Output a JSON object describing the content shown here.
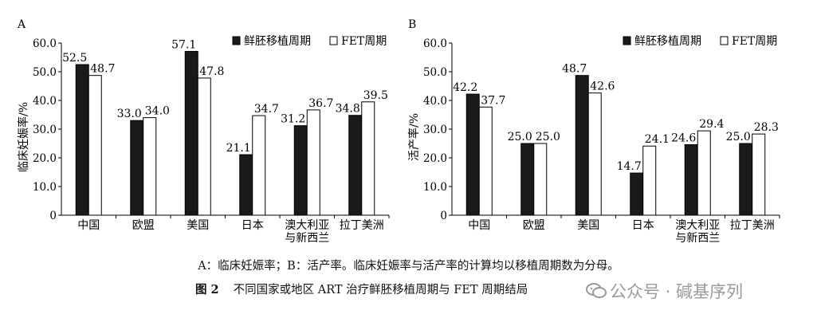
{
  "chart_data": [
    {
      "type": "bar",
      "panel_label": "A",
      "ylabel": "临床妊娠率/%",
      "ylim": [
        0,
        60
      ],
      "yticks": [
        "0",
        "10.0",
        "20.0",
        "30.0",
        "40.0",
        "50.0",
        "60.0"
      ],
      "categories": [
        [
          "中国"
        ],
        [
          "欧盟"
        ],
        [
          "美国"
        ],
        [
          "日本"
        ],
        [
          "澳大利亚",
          "与新西兰"
        ],
        [
          "拉丁美洲"
        ]
      ],
      "series": [
        {
          "name": "鲜胚移植周期",
          "color": "#1a1a1a",
          "values": [
            52.5,
            33.0,
            57.1,
            21.1,
            31.2,
            34.8
          ],
          "labels": [
            "52.5",
            "33.0",
            "57.1",
            "21.1",
            "31.2",
            "34.8"
          ]
        },
        {
          "name": "FET周期",
          "color": "#ffffff",
          "values": [
            48.7,
            34.0,
            47.8,
            34.7,
            36.7,
            39.5
          ],
          "labels": [
            "48.7",
            "34.0",
            "47.8",
            "34.7",
            "36.7",
            "39.5"
          ]
        }
      ],
      "legend": "top-right",
      "grid": false
    },
    {
      "type": "bar",
      "panel_label": "B",
      "ylabel": "活产率/%",
      "ylim": [
        0,
        60
      ],
      "yticks": [
        "0",
        "10.0",
        "20.0",
        "30.0",
        "40.0",
        "50.0",
        "60.0"
      ],
      "categories": [
        [
          "中国"
        ],
        [
          "欧盟"
        ],
        [
          "美国"
        ],
        [
          "日本"
        ],
        [
          "澳大利亚",
          "与新西兰"
        ],
        [
          "拉丁美洲"
        ]
      ],
      "series": [
        {
          "name": "鲜胚移植周期",
          "color": "#1a1a1a",
          "values": [
            42.2,
            25.0,
            48.7,
            14.7,
            24.6,
            25.0
          ],
          "labels": [
            "42.2",
            "25.0",
            "48.7",
            "14.7",
            "24.6",
            "25.0"
          ]
        },
        {
          "name": "FET周期",
          "color": "#ffffff",
          "values": [
            37.7,
            25.0,
            42.6,
            24.1,
            29.4,
            28.3
          ],
          "labels": [
            "37.7",
            "25.0",
            "42.6",
            "24.1",
            "29.4",
            "28.3"
          ]
        }
      ],
      "legend": "top-right",
      "grid": false
    }
  ],
  "caption": {
    "note": "A：临床妊娠率；B：活产率。临床妊娠率与活产率的计算均以移植周期数为分母。",
    "figure_label": "图 2",
    "title": "不同国家或地区 ART 治疗鲜胚移植周期与 FET 周期结局"
  },
  "watermark": {
    "text": "公众号 · 碱基序列",
    "icon": "wechat-icon"
  }
}
